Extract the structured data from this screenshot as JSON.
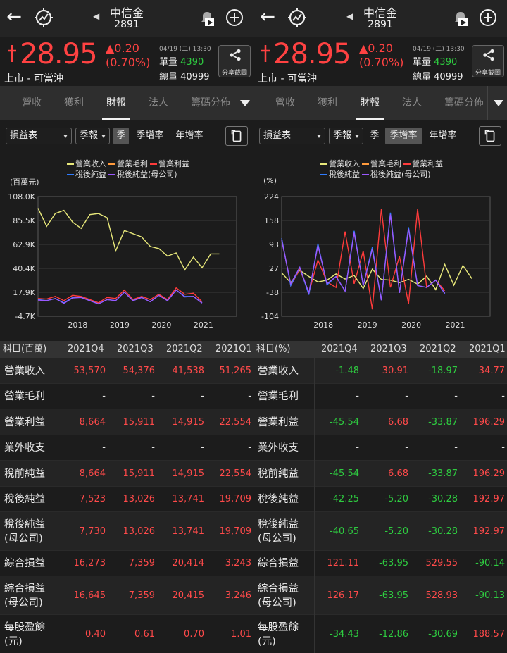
{
  "stock": {
    "name": "中信金",
    "code": "2891"
  },
  "quote": {
    "price": "28.95",
    "change": "▲0.20",
    "change_pct": "(0.70%)",
    "market": "上市 - 可當沖",
    "datetime": "04/19 (二) 13:30",
    "single_vol_label": "單量",
    "single_vol": "4390",
    "total_vol_label": "總量",
    "total_vol": "40999",
    "share_label": "分享截圖",
    "price_color": "#ff4242",
    "vol_color": "#2ecc40"
  },
  "tabs": [
    "營收",
    "獲利",
    "財報",
    "法人",
    "籌碼分佈"
  ],
  "active_tab": "財報",
  "controls": {
    "statement": "損益表",
    "period": "季報",
    "left_segments": [
      "季",
      "季增率",
      "年增率"
    ],
    "left_active": "季",
    "right_segments": [
      "季",
      "季增率",
      "年增率"
    ],
    "right_active": "季增率"
  },
  "legend": {
    "row1": [
      "營業收入",
      "營業毛利",
      "營業利益"
    ],
    "row2": [
      "稅後純益",
      "稅後純益(母公司)"
    ],
    "colors": [
      "#e8e87a",
      "#ff9a3c",
      "#ff3b3b",
      "#2f7cff",
      "#9b59ff"
    ]
  },
  "chart_data": [
    {
      "type": "line",
      "unit": "(百萬元)",
      "yticks": [
        "108.0K",
        "85.5K",
        "62.9K",
        "40.4K",
        "17.9K",
        "-4.7K"
      ],
      "ylim": [
        -4700,
        108000
      ],
      "xticks": [
        "2018",
        "2019",
        "2020",
        "2021"
      ],
      "x": [
        0,
        1,
        2,
        3,
        4,
        5,
        6,
        7,
        8,
        9,
        10,
        11,
        12,
        13,
        14,
        15,
        16,
        17,
        18,
        19,
        20,
        21,
        22,
        23
      ],
      "series": [
        {
          "name": "營業收入",
          "values": [
            97000,
            80000,
            92000,
            95000,
            84000,
            78000,
            91000,
            92000,
            88000,
            57000,
            76000,
            73000,
            70000,
            61000,
            59000,
            52000,
            55000,
            39000,
            51000,
            41000,
            54000,
            54000,
            null,
            null
          ]
        },
        {
          "name": "營業毛利",
          "values": [
            null,
            null,
            null,
            null,
            null,
            null,
            null,
            null,
            null,
            null,
            null,
            null,
            null,
            null,
            null,
            null,
            null,
            null,
            null,
            null,
            null,
            null,
            null,
            null
          ]
        },
        {
          "name": "營業利益",
          "values": [
            12000,
            11500,
            14000,
            10000,
            15000,
            14000,
            11000,
            8000,
            13000,
            12000,
            20000,
            11000,
            14000,
            11000,
            16000,
            11000,
            22000,
            16000,
            17000,
            9000,
            null,
            null,
            null,
            null
          ]
        },
        {
          "name": "稅後純益",
          "values": [
            11000,
            10000,
            12000,
            8000,
            13000,
            13000,
            10000,
            7000,
            11000,
            10000,
            18000,
            10000,
            13000,
            9000,
            15000,
            10000,
            20000,
            14000,
            14000,
            8000,
            null,
            null,
            null,
            null
          ]
        },
        {
          "name": "稅後純益(母公司)",
          "values": [
            10500,
            10000,
            12000,
            7500,
            12500,
            13000,
            10000,
            7000,
            11000,
            10000,
            18000,
            10000,
            13000,
            9000,
            15000,
            10000,
            20000,
            13500,
            14000,
            7700,
            null,
            null,
            null,
            null
          ]
        }
      ]
    },
    {
      "type": "line",
      "unit": "(%)",
      "yticks": [
        "224",
        "158",
        "93",
        "27",
        "-38",
        "-104"
      ],
      "ylim": [
        -104,
        224
      ],
      "xticks": [
        "2018",
        "2019",
        "2020",
        "2021"
      ],
      "x": [
        0,
        1,
        2,
        3,
        4,
        5,
        6,
        7,
        8,
        9,
        10,
        11,
        12,
        13,
        14,
        15,
        16,
        17,
        18,
        19,
        20,
        21,
        22,
        23
      ],
      "series": [
        {
          "name": "營業收入",
          "values": [
            15,
            -12,
            22,
            5,
            -10,
            -5,
            12,
            -2,
            8,
            -28,
            25,
            -3,
            -5,
            -12,
            -3,
            -16,
            6,
            -31,
            38,
            -19,
            35,
            -1,
            null,
            null
          ]
        },
        {
          "name": "營業毛利",
          "values": [
            null,
            null,
            null,
            null,
            null,
            null,
            null,
            null,
            null,
            null,
            null,
            null,
            null,
            null,
            null,
            null,
            null,
            null,
            null,
            null,
            null,
            null,
            null,
            null
          ]
        },
        {
          "name": "營業利益",
          "values": [
            110,
            -20,
            25,
            -40,
            50,
            -10,
            -25,
            128,
            -15,
            75,
            -85,
            190,
            -25,
            60,
            -70,
            190,
            -25,
            -5,
            -34,
            null,
            null,
            null,
            null,
            null
          ]
        },
        {
          "name": "稅後純益",
          "values": [
            110,
            -20,
            30,
            -45,
            95,
            -18,
            5,
            -35,
            130,
            -20,
            85,
            -60,
            180,
            -40,
            140,
            -20,
            -25,
            -5,
            -42,
            null,
            null,
            null,
            null,
            null
          ]
        },
        {
          "name": "稅後純益(母公司)",
          "values": [
            105,
            -15,
            30,
            -40,
            90,
            -15,
            5,
            -35,
            125,
            -20,
            80,
            -60,
            175,
            -40,
            135,
            -20,
            -25,
            -5,
            -41,
            null,
            null,
            null,
            null,
            null
          ]
        }
      ]
    }
  ],
  "table_left": {
    "header": [
      "科目(百萬)",
      "2021Q4",
      "2021Q3",
      "2021Q2",
      "2021Q1"
    ],
    "rows": [
      {
        "label": "營業收入",
        "values": [
          "53,570",
          "54,376",
          "41,538",
          "51,265"
        ]
      },
      {
        "label": "營業毛利",
        "values": [
          "-",
          "-",
          "-",
          "-"
        ]
      },
      {
        "label": "營業利益",
        "values": [
          "8,664",
          "15,911",
          "14,915",
          "22,554"
        ]
      },
      {
        "label": "業外收支",
        "values": [
          "-",
          "-",
          "-",
          "-"
        ]
      },
      {
        "label": "稅前純益",
        "values": [
          "8,664",
          "15,911",
          "14,915",
          "22,554"
        ]
      },
      {
        "label": "稅後純益",
        "values": [
          "7,523",
          "13,026",
          "13,741",
          "19,709"
        ]
      },
      {
        "label": "稅後純益",
        "label2": "(母公司)",
        "values": [
          "7,730",
          "13,026",
          "13,741",
          "19,709"
        ]
      },
      {
        "label": "綜合損益",
        "values": [
          "16,273",
          "7,359",
          "20,414",
          "3,243"
        ]
      },
      {
        "label": "綜合損益",
        "label2": "(母公司)",
        "values": [
          "16,645",
          "7,359",
          "20,415",
          "3,246"
        ]
      },
      {
        "label": "每股盈餘",
        "label2": "(元)",
        "values": [
          "0.40",
          "0.61",
          "0.70",
          "1.01"
        ]
      }
    ]
  },
  "table_right": {
    "header": [
      "科目(%)",
      "2021Q4",
      "2021Q3",
      "2021Q2",
      "2021Q1"
    ],
    "rows": [
      {
        "label": "營業收入",
        "values": [
          "-1.48",
          "30.91",
          "-18.97",
          "34.77"
        ]
      },
      {
        "label": "營業毛利",
        "values": [
          "-",
          "-",
          "-",
          "-"
        ]
      },
      {
        "label": "營業利益",
        "values": [
          "-45.54",
          "6.68",
          "-33.87",
          "196.29"
        ]
      },
      {
        "label": "業外收支",
        "values": [
          "-",
          "-",
          "-",
          "-"
        ]
      },
      {
        "label": "稅前純益",
        "values": [
          "-45.54",
          "6.68",
          "-33.87",
          "196.29"
        ]
      },
      {
        "label": "稅後純益",
        "values": [
          "-42.25",
          "-5.20",
          "-30.28",
          "192.97"
        ]
      },
      {
        "label": "稅後純益",
        "label2": "(母公司)",
        "values": [
          "-40.65",
          "-5.20",
          "-30.28",
          "192.97"
        ]
      },
      {
        "label": "綜合損益",
        "values": [
          "121.11",
          "-63.95",
          "529.55",
          "-90.14"
        ]
      },
      {
        "label": "綜合損益",
        "label2": "(母公司)",
        "values": [
          "126.17",
          "-63.95",
          "528.93",
          "-90.13"
        ]
      },
      {
        "label": "每股盈餘",
        "label2": "(元)",
        "values": [
          "-34.43",
          "-12.86",
          "-30.69",
          "188.57"
        ]
      }
    ]
  }
}
